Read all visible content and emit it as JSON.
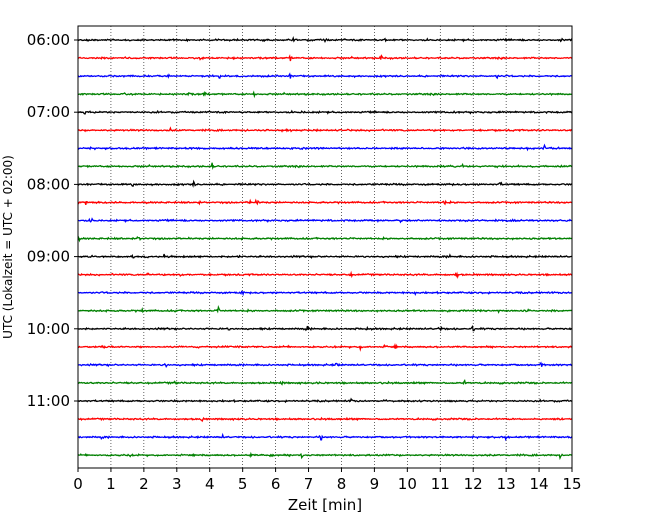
{
  "chart_data": {
    "type": "line",
    "title": "",
    "xlabel": "Zeit  [min]",
    "ylabel": "UTC (Lokalzeit = UTC + 02:00)",
    "xlim": [
      0,
      15
    ],
    "x_ticks": [
      "0",
      "1",
      "2",
      "3",
      "4",
      "5",
      "6",
      "7",
      "8",
      "9",
      "10",
      "11",
      "12",
      "13",
      "14",
      "15"
    ],
    "y_tick_labels": [
      "06:00",
      "07:00",
      "08:00",
      "09:00",
      "10:00",
      "11:00"
    ],
    "grid": "vertical dotted lines at every minute",
    "trace_colors": [
      "#000000",
      "#ff0000",
      "#0000ff",
      "#008000"
    ],
    "series": [
      {
        "time": "06:00",
        "color": "#000000"
      },
      {
        "time": "06:15",
        "color": "#ff0000"
      },
      {
        "time": "06:30",
        "color": "#0000ff"
      },
      {
        "time": "06:45",
        "color": "#008000"
      },
      {
        "time": "07:00",
        "color": "#000000"
      },
      {
        "time": "07:15",
        "color": "#ff0000"
      },
      {
        "time": "07:30",
        "color": "#0000ff"
      },
      {
        "time": "07:45",
        "color": "#008000"
      },
      {
        "time": "08:00",
        "color": "#000000"
      },
      {
        "time": "08:15",
        "color": "#ff0000"
      },
      {
        "time": "08:30",
        "color": "#0000ff"
      },
      {
        "time": "08:45",
        "color": "#008000"
      },
      {
        "time": "09:00",
        "color": "#000000"
      },
      {
        "time": "09:15",
        "color": "#ff0000"
      },
      {
        "time": "09:30",
        "color": "#0000ff"
      },
      {
        "time": "09:45",
        "color": "#008000"
      },
      {
        "time": "10:00",
        "color": "#000000"
      },
      {
        "time": "10:15",
        "color": "#ff0000"
      },
      {
        "time": "10:30",
        "color": "#0000ff"
      },
      {
        "time": "10:45",
        "color": "#008000"
      },
      {
        "time": "11:00",
        "color": "#000000"
      },
      {
        "time": "11:15",
        "color": "#ff0000"
      },
      {
        "time": "11:30",
        "color": "#0000ff"
      },
      {
        "time": "11:45",
        "color": "#008000"
      }
    ]
  }
}
